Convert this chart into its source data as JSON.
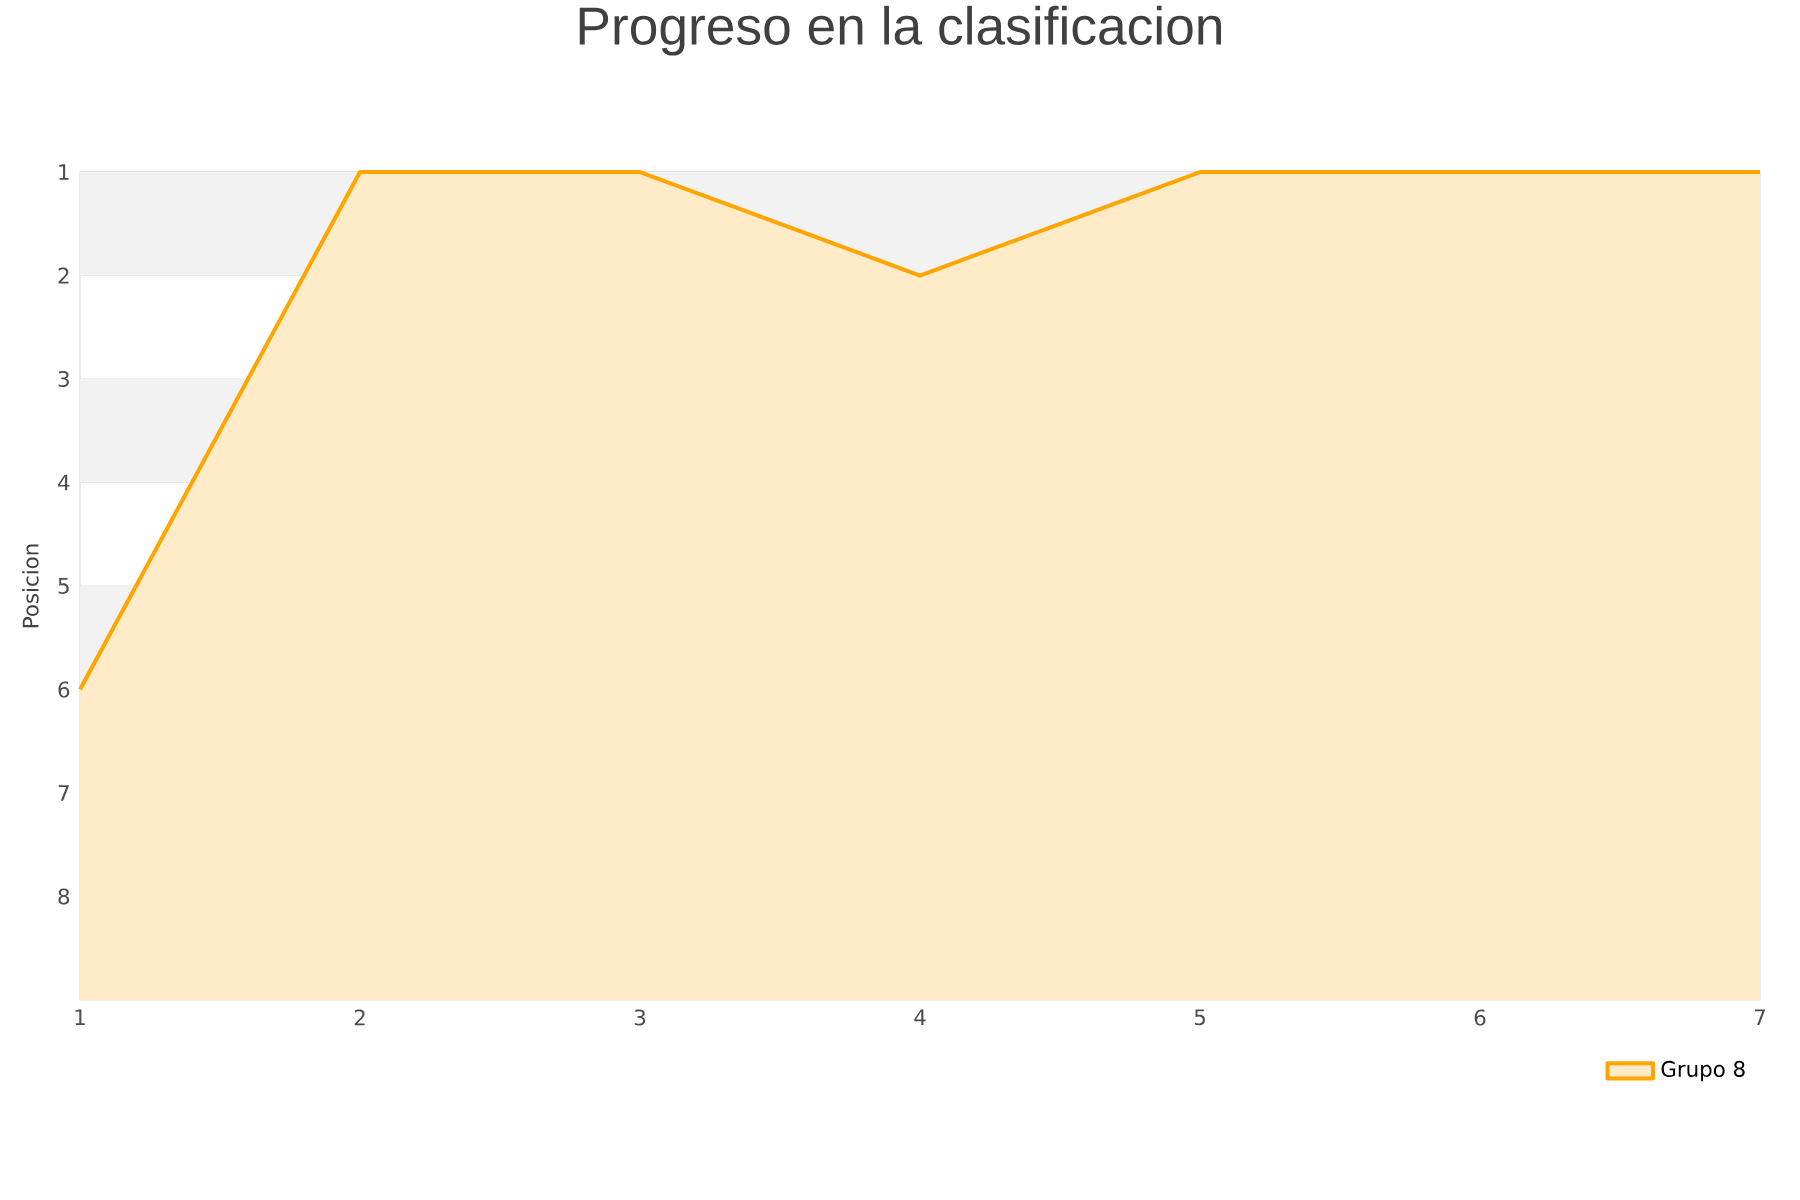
{
  "chart_data": {
    "type": "area",
    "title": "Progreso en la clasificacion",
    "ylabel": "Posicion",
    "x": [
      1,
      2,
      3,
      4,
      5,
      6,
      7
    ],
    "series": [
      {
        "name": "Grupo 8",
        "color": "#ffa500",
        "values": [
          6,
          1,
          1,
          2,
          1,
          1,
          1
        ]
      }
    ],
    "xlim": [
      1,
      7
    ],
    "xticks": [
      1,
      2,
      3,
      4,
      5,
      6,
      7
    ],
    "ylim": [
      9,
      1
    ],
    "yticks": [
      1,
      2,
      3,
      4,
      5,
      6,
      7,
      8
    ],
    "bands": [
      {
        "axis": "y",
        "from": 1,
        "to": 2,
        "color": "#f2f2f2"
      },
      {
        "axis": "y",
        "from": 3,
        "to": 4,
        "color": "#f2f2f2"
      },
      {
        "axis": "y",
        "from": 5,
        "to": 6,
        "color": "#f2f2f2"
      }
    ],
    "grid": "y",
    "legend": "bottom right"
  }
}
